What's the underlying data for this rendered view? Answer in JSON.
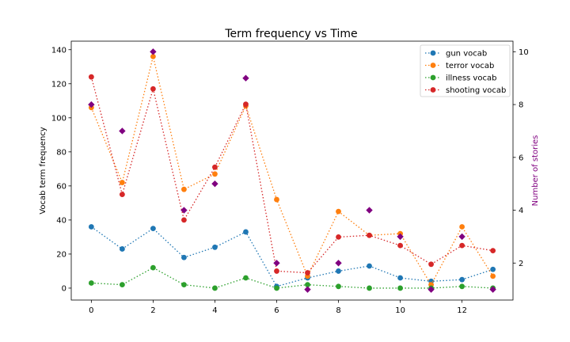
{
  "chart_data": {
    "type": "line",
    "title": "Term frequency vs Time",
    "xlabel": "",
    "ylabel": "Vocab term frequency",
    "y2label": "Number of stories",
    "x": [
      0,
      1,
      2,
      3,
      4,
      5,
      6,
      7,
      8,
      9,
      10,
      11,
      12,
      13
    ],
    "xticks": [
      "0",
      "2",
      "4",
      "6",
      "8",
      "10",
      "12"
    ],
    "xlim": [
      -0.65,
      13.65
    ],
    "ylim": [
      -7,
      145
    ],
    "yticks": [
      "0",
      "20",
      "40",
      "60",
      "80",
      "100",
      "120",
      "140"
    ],
    "y2lim": [
      0.6,
      10.4
    ],
    "y2ticks": [
      "2",
      "4",
      "6",
      "8",
      "10"
    ],
    "legend_position": "top-right",
    "series": [
      {
        "name": "gun vocab",
        "color": "#1f77b4",
        "axis": "left",
        "values": [
          36,
          23,
          35,
          18,
          24,
          33,
          1,
          6,
          10,
          13,
          6,
          4,
          5,
          11
        ]
      },
      {
        "name": "terror vocab",
        "color": "#ff7f0e",
        "axis": "left",
        "values": [
          106,
          62,
          136,
          58,
          67,
          107,
          52,
          7,
          45,
          31,
          32,
          2,
          36,
          7
        ]
      },
      {
        "name": "illness vocab",
        "color": "#2ca02c",
        "axis": "left",
        "values": [
          3,
          2,
          12,
          2,
          0,
          6,
          0,
          2,
          1,
          0,
          0,
          0,
          1,
          0
        ]
      },
      {
        "name": "shooting vocab",
        "color": "#d62728",
        "axis": "left",
        "values": [
          124,
          55,
          117,
          40,
          71,
          108,
          10,
          9,
          30,
          31,
          25,
          14,
          25,
          22
        ]
      }
    ],
    "stories": {
      "color": "#800080",
      "axis": "right",
      "marker": "diamond",
      "values": [
        8,
        7,
        10,
        4,
        5,
        9,
        2,
        1,
        2,
        4,
        3,
        1,
        3,
        1
      ]
    }
  }
}
